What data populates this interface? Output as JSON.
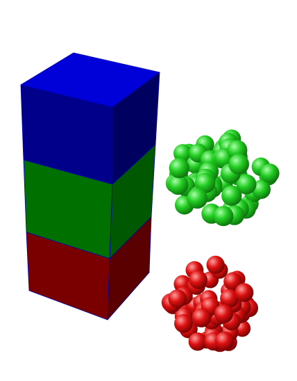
{
  "scene": {
    "background": "#ffffff",
    "stack": {
      "segments": [
        {
          "name": "blue",
          "color": "#0000cc",
          "front": "#00008a",
          "right": "#000060",
          "top": "#0000d8"
        },
        {
          "name": "green",
          "color": "#008000",
          "front": "#007000",
          "right": "#005800"
        },
        {
          "name": "red",
          "color": "#800000",
          "front": "#7a0000",
          "right": "#5a0000"
        }
      ],
      "edge_color": "#0000aa"
    },
    "clusters": [
      {
        "name": "green-sphere-cluster",
        "color": "#22cc22",
        "highlight": "#a8ffa8",
        "shade": "#0a6a0a",
        "count": 60
      },
      {
        "name": "red-sphere-cluster",
        "color": "#dd1111",
        "highlight": "#ff9c9c",
        "shade": "#6a0000",
        "count": 55
      }
    ]
  }
}
